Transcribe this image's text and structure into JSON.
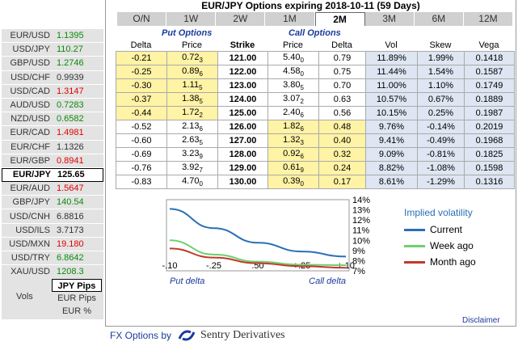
{
  "title": "EUR/JPY Options expiring 2018-10-11 (59 Days)",
  "tabs": [
    {
      "label": "O/N",
      "selected": false
    },
    {
      "label": "1W",
      "selected": false
    },
    {
      "label": "2W",
      "selected": false
    },
    {
      "label": "1M",
      "selected": false
    },
    {
      "label": "2M",
      "selected": true
    },
    {
      "label": "3M",
      "selected": false
    },
    {
      "label": "6M",
      "selected": false
    },
    {
      "label": "12M",
      "selected": false
    }
  ],
  "pairs": [
    {
      "name": "EUR/USD",
      "value": "1.1395",
      "trend": "up"
    },
    {
      "name": "USD/JPY",
      "value": "110.27",
      "trend": "up"
    },
    {
      "name": "GBP/USD",
      "value": "1.2746",
      "trend": "up"
    },
    {
      "name": "USD/CHF",
      "value": "0.9939",
      "trend": "flat"
    },
    {
      "name": "USD/CAD",
      "value": "1.3147",
      "trend": "down"
    },
    {
      "name": "AUD/USD",
      "value": "0.7283",
      "trend": "up"
    },
    {
      "name": "NZD/USD",
      "value": "0.6582",
      "trend": "up"
    },
    {
      "name": "EUR/CAD",
      "value": "1.4981",
      "trend": "down"
    },
    {
      "name": "EUR/CHF",
      "value": "1.1326",
      "trend": "flat"
    },
    {
      "name": "EUR/GBP",
      "value": "0.8941",
      "trend": "down"
    },
    {
      "name": "EUR/JPY",
      "value": "125.65",
      "trend": "up",
      "selected": true
    },
    {
      "name": "EUR/AUD",
      "value": "1.5647",
      "trend": "down"
    },
    {
      "name": "GBP/JPY",
      "value": "140.54",
      "trend": "up"
    },
    {
      "name": "USD/CNH",
      "value": "6.8816",
      "trend": "flat"
    },
    {
      "name": "USD/ILS",
      "value": "3.7173",
      "trend": "flat"
    },
    {
      "name": "USD/MXN",
      "value": "19.180",
      "trend": "down"
    },
    {
      "name": "USD/TRY",
      "value": "6.8642",
      "trend": "up"
    },
    {
      "name": "XAU/USD",
      "value": "1208.3",
      "trend": "up"
    }
  ],
  "vols": {
    "label": "Vols",
    "options": [
      {
        "label": "JPY Pips",
        "selected": true
      },
      {
        "label": "EUR Pips",
        "selected": false
      },
      {
        "label": "EUR %",
        "selected": false
      }
    ]
  },
  "headers": {
    "put": "Put Options",
    "call": "Call Options",
    "delta": "Delta",
    "price": "Price",
    "strike": "Strike",
    "vol": "Vol",
    "skew": "Skew",
    "vega": "Vega"
  },
  "rows": [
    {
      "put_delta": "-0.21",
      "put_price": "0.72",
      "put_sub": "3",
      "strike": "121.00",
      "call_price": "5.40",
      "call_sub": "0",
      "call_delta": "0.79",
      "vol": "11.89%",
      "skew": "1.99%",
      "vega": "0.1418",
      "put_hl": true,
      "call_hl": false
    },
    {
      "put_delta": "-0.25",
      "put_price": "0.89",
      "put_sub": "6",
      "strike": "122.00",
      "call_price": "4.58",
      "call_sub": "0",
      "call_delta": "0.75",
      "vol": "11.44%",
      "skew": "1.54%",
      "vega": "0.1587",
      "put_hl": true,
      "call_hl": false
    },
    {
      "put_delta": "-0.30",
      "put_price": "1.11",
      "put_sub": "5",
      "strike": "123.00",
      "call_price": "3.80",
      "call_sub": "5",
      "call_delta": "0.70",
      "vol": "11.00%",
      "skew": "1.10%",
      "vega": "0.1749",
      "put_hl": true,
      "call_hl": false
    },
    {
      "put_delta": "-0.37",
      "put_price": "1.38",
      "put_sub": "5",
      "strike": "124.00",
      "call_price": "3.07",
      "call_sub": "2",
      "call_delta": "0.63",
      "vol": "10.57%",
      "skew": "0.67%",
      "vega": "0.1889",
      "put_hl": true,
      "call_hl": false
    },
    {
      "put_delta": "-0.44",
      "put_price": "1.72",
      "put_sub": "2",
      "strike": "125.00",
      "call_price": "2.40",
      "call_sub": "6",
      "call_delta": "0.56",
      "vol": "10.15%",
      "skew": "0.25%",
      "vega": "0.1987",
      "put_hl": true,
      "call_hl": false
    },
    {
      "put_delta": "-0.52",
      "put_price": "2.13",
      "put_sub": "6",
      "strike": "126.00",
      "call_price": "1.82",
      "call_sub": "6",
      "call_delta": "0.48",
      "vol": "9.76%",
      "skew": "-0.14%",
      "vega": "0.2019",
      "put_hl": false,
      "call_hl": true
    },
    {
      "put_delta": "-0.60",
      "put_price": "2.63",
      "put_sub": "5",
      "strike": "127.00",
      "call_price": "1.32",
      "call_sub": "3",
      "call_delta": "0.40",
      "vol": "9.41%",
      "skew": "-0.49%",
      "vega": "0.1968",
      "put_hl": false,
      "call_hl": true
    },
    {
      "put_delta": "-0.69",
      "put_price": "3.23",
      "put_sub": "9",
      "strike": "128.00",
      "call_price": "0.92",
      "call_sub": "6",
      "call_delta": "0.32",
      "vol": "9.09%",
      "skew": "-0.81%",
      "vega": "0.1825",
      "put_hl": false,
      "call_hl": true
    },
    {
      "put_delta": "-0.76",
      "put_price": "3.92",
      "put_sub": "7",
      "strike": "129.00",
      "call_price": "0.61",
      "call_sub": "9",
      "call_delta": "0.24",
      "vol": "8.82%",
      "skew": "-1.08%",
      "vega": "0.1598",
      "put_hl": false,
      "call_hl": true
    },
    {
      "put_delta": "-0.83",
      "put_price": "4.70",
      "put_sub": "0",
      "strike": "130.00",
      "call_price": "0.39",
      "call_sub": "0",
      "call_delta": "0.17",
      "vol": "8.61%",
      "skew": "-1.29%",
      "vega": "0.1316",
      "put_hl": false,
      "call_hl": true
    }
  ],
  "chart_data": {
    "type": "line",
    "x_ticks": [
      "-.10",
      "-.25",
      ".50",
      "+.25",
      "+.10"
    ],
    "x": [
      0,
      1,
      2,
      3,
      4
    ],
    "y_ticks": [
      "14%",
      "13%",
      "12%",
      "11%",
      "10%",
      "9%",
      "8%",
      "7%"
    ],
    "ylim": [
      7,
      14
    ],
    "xlabel_left": "Put delta",
    "xlabel_right": "Call delta",
    "legend_title": "Implied volatility",
    "series": [
      {
        "name": "Current",
        "color": "#2a6fb5",
        "values": [
          13.1,
          11.2,
          9.76,
          8.9,
          8.4
        ]
      },
      {
        "name": "Week ago",
        "color": "#6fcf6f",
        "values": [
          10.0,
          8.6,
          7.9,
          7.6,
          7.55
        ]
      },
      {
        "name": "Month ago",
        "color": "#c0392b",
        "values": [
          9.2,
          8.3,
          7.75,
          7.45,
          7.3
        ]
      }
    ]
  },
  "disclaimer": "Disclaimer",
  "footer": {
    "by": "FX Options by",
    "brand": "Sentry Derivatives"
  }
}
